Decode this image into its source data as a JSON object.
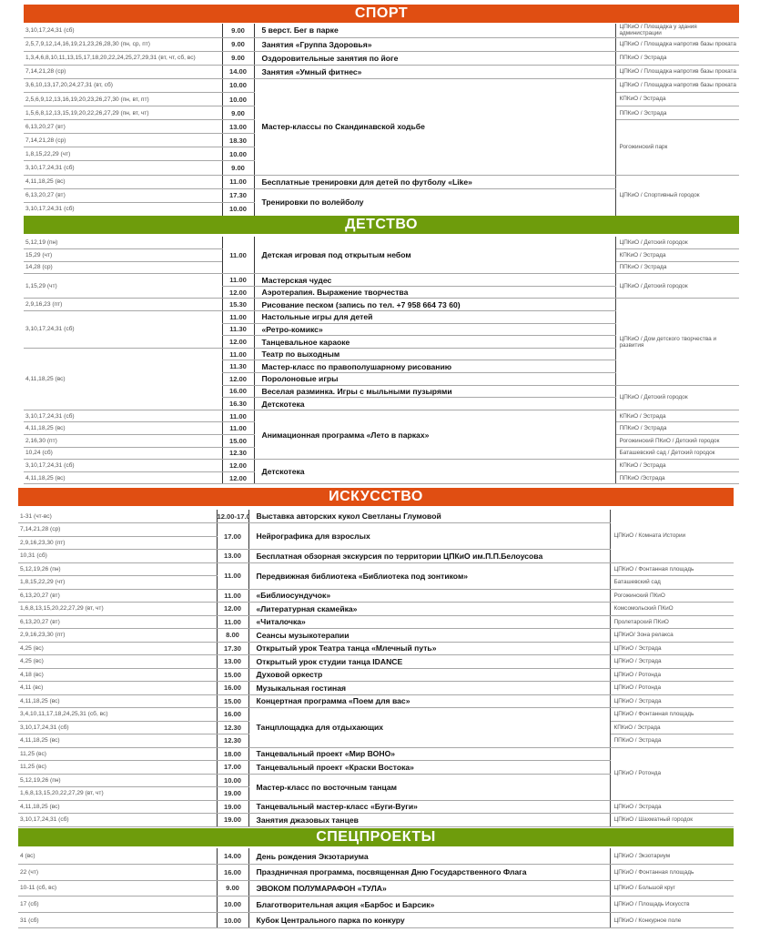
{
  "colors": {
    "orange": "#e04e12",
    "green": "#6e9c0c"
  },
  "sections": [
    {
      "title": "СПОРТ",
      "color": "#e04e12",
      "rows": [
        {
          "date": "3,10,17,24,31 (сб)",
          "time": "9.00",
          "event": "5 верст. Бег в парке",
          "venue": "ЦПКиО / Площадка у здания администрации"
        },
        {
          "date": "2,5,7,9,12,14,16,19,21,23,26,28,30 (пн, ср, пт)",
          "time": "9.00",
          "event": "Занятия «Группа Здоровья»",
          "venue": "ЦПКиО / Площадка напротив базы проката"
        },
        {
          "date": "1,3,4,6,8,10,11,13,15,17,18,20,22,24,25,27,29,31 (вт, чт, сб, вс)",
          "time": "9.00",
          "event": "Оздоровительные занятия по йоге",
          "venue": "ППКиО / Эстрада"
        },
        {
          "date": "7,14,21,28 (ср)",
          "time": "14.00",
          "event": "Занятия «Умный фитнес»",
          "venue": "ЦПКиО / Площадка напротив базы проката"
        },
        {
          "date": "3,6,10,13,17,20,24,27,31 (вт, сб)",
          "time": "10.00",
          "event": "Мастер-классы по Скандинавской ходьбе",
          "venue": "ЦПКиО / Площадка напротив базы проката"
        },
        {
          "date": "2,5,6,9,12,13,16,19,20,23,26,27,30  (пн, вт, пт)",
          "time": "10.00",
          "event": null,
          "venue": "КПКиО / Эстрада"
        },
        {
          "date": "1,5,6,8,12,13,15,19,20,22,26,27,29  (пн, вт, чт)",
          "time": "9.00",
          "event": null,
          "venue": "ППКиО / Эстрада"
        },
        {
          "date": "6,13,20,27 (вт)",
          "time": "13.00",
          "event": null,
          "venue": "Рогожинский парк"
        },
        {
          "date": "7,14,21,28 (ср)",
          "time": "18.30",
          "event": null,
          "venue": null
        },
        {
          "date": "1,8,15,22,29 (чт)",
          "time": "10.00",
          "event": null,
          "venue": null
        },
        {
          "date": "3,10,17,24,31 (сб)",
          "time": "9.00",
          "event": null,
          "venue": null
        },
        {
          "date": "4,11,18,25 (вс)",
          "time": "11.00",
          "event": "Бесплатные тренировки для детей по футболу «Like»",
          "venue": "ЦПКиО / Спортивный городок"
        },
        {
          "date": "6,13,20,27 (вт)",
          "time": "17.30",
          "event": "Тренировки по волейболу",
          "venue": null
        },
        {
          "date": "3,10,17,24,31 (сб)",
          "time": "10.00",
          "event": null,
          "venue": null
        }
      ]
    },
    {
      "title": "ДЕТСТВО",
      "color": "#6e9c0c",
      "rows": [
        {
          "date": "5,12,19 (пн)",
          "time": "11.00",
          "event": "Детская игровая под открытым небом",
          "venue": "ЦПКиО / Детский городок"
        },
        {
          "date": "15,29 (чт)",
          "time": null,
          "event": null,
          "venue": "КПКиО / Эстрада"
        },
        {
          "date": "14,28 (ср)",
          "time": null,
          "event": null,
          "venue": "ППКиО / Эстрада"
        },
        {
          "date": "1,15,29 (чт)",
          "time": "11.00",
          "event": "Мастерская чудес",
          "venue": "ЦПКиО / Детский городок"
        },
        {
          "date": null,
          "time": "12.00",
          "event": "Аэротерапия. Выражение творчества",
          "venue": null
        },
        {
          "date": "2,9,16,23 (пт)",
          "time": "15.30",
          "event": "Рисование песком (запись по тел. +7 958 664 73 60)",
          "venue": "ЦПКиО / Дом детского творчества и развития"
        },
        {
          "date": "3,10,17,24,31 (сб)",
          "time": "11.00",
          "event": "Настольные игры для детей",
          "venue": null
        },
        {
          "date": null,
          "time": "11.30",
          "event": "«Ретро-комикс»",
          "venue": null
        },
        {
          "date": null,
          "time": "12.00",
          "event": "Танцевальное караоке",
          "venue": null
        },
        {
          "date": "4,11,18,25 (вс)",
          "time": "11.00",
          "event": "Театр по выходным",
          "venue": null
        },
        {
          "date": null,
          "time": "11.30",
          "event": "Мастер-класс по правополушарному рисованию",
          "venue": null
        },
        {
          "date": null,
          "time": "12.00",
          "event": "Поролоновые игры",
          "venue": null
        },
        {
          "date": null,
          "time": "16.00",
          "event": "Веселая разминка. Игры с мыльными пузырями",
          "venue": "ЦПКиО / Детский городок"
        },
        {
          "date": null,
          "time": "16.30",
          "event": "Детскотека",
          "venue": null
        },
        {
          "date": "3,10,17,24,31 (сб)",
          "time": "11.00",
          "event": "Анимационная программа «Лето в парках»",
          "venue": "КПКиО / Эстрада"
        },
        {
          "date": "4,11,18,25 (вс)",
          "time": "11.00",
          "event": null,
          "venue": "ППКиО / Эстрада"
        },
        {
          "date": "2,16,30 (пт)",
          "time": "15.00",
          "event": null,
          "venue": "Рогожинский ПКиО / Детский городок"
        },
        {
          "date": "10,24 (сб)",
          "time": "12.30",
          "event": null,
          "venue": "Баташевский сад / Детский городок"
        },
        {
          "date": "3,10,17,24,31 (сб)",
          "time": "12.00",
          "event": "Детскотека",
          "venue": "КПКиО / Эстрада"
        },
        {
          "date": "4,11,18,25 (вс)",
          "time": "12.00",
          "event": null,
          "venue": "ППКиО /Эстрада"
        }
      ]
    },
    {
      "title": "ИСКУССТВО",
      "color": "#e04e12",
      "rows": [
        {
          "date": "1-31 (чт-вс)",
          "time": "12.00-17.00",
          "event": "Выставка авторских кукол Светланы Глумовой",
          "venue": "ЦПКиО / Комната Истории"
        },
        {
          "date": "7,14,21,28 (ср)",
          "time": "17.00",
          "event": "Нейрографика для взрослых",
          "venue": null
        },
        {
          "date": "2,9,16,23,30 (пт)",
          "time": null,
          "event": null,
          "venue": null
        },
        {
          "date": "10,31 (сб)",
          "time": "13.00",
          "event": "Бесплатная обзорная экскурсия по территории ЦПКиО им.П.П.Белоусова",
          "venue": null
        },
        {
          "date": "5,12,19,26 (пн)",
          "time": "11.00",
          "event": "Передвижная библиотека «Библиотека под зонтиком»",
          "venue": "ЦПКиО / Фонтанная площадь"
        },
        {
          "date": "1,8,15,22,29 (чт)",
          "time": null,
          "event": null,
          "venue": "Баташевский сад"
        },
        {
          "date": "6,13,20,27  (вт)",
          "time": "11.00",
          "event": "«Библиосундучок»",
          "venue": "Рогожинский ПКиО"
        },
        {
          "date": "1,6,8,13,15,20,22,27,29 (вт, чт)",
          "time": "12.00",
          "event": "«Литературная скамейка»",
          "venue": "Комсомольский ПКиО"
        },
        {
          "date": "6,13,20,27 (вт)",
          "time": "11.00",
          "event": "«Читалочка»",
          "venue": "Пролетарский ПКиО"
        },
        {
          "date": "2,9,16,23,30 (пт)",
          "time": "8.00",
          "event": "Сеансы музыкотерапии",
          "venue": "ЦПКиО/ Зона релакса"
        },
        {
          "date": "4,25 (вс)",
          "time": "17.30",
          "event": "Открытый урок Театра танца «Млечный путь»",
          "venue": "ЦПКиО / Эстрада"
        },
        {
          "date": "4,25 (вс)",
          "time": "13.00",
          "event": "Открытый урок студии танца IDANCE",
          "venue": "ЦПКиО / Эстрада"
        },
        {
          "date": "4,18 (вс)",
          "time": "15.00",
          "event": "Духовой оркестр",
          "venue": "ЦПКиО / Ротонда"
        },
        {
          "date": "4,11 (вс)",
          "time": "16.00",
          "event": "Музыкальная гостиная",
          "venue": "ЦПКиО / Ротонда"
        },
        {
          "date": "4,11,18,25 (вс)",
          "time": "15.00",
          "event": "Концертная программа «Поем для вас»",
          "venue": "ЦПКиО / Эстрада"
        },
        {
          "date": "3,4,10,11,17,18,24,25,31 (сб, вс)",
          "time": "16.00",
          "event": "Танцплощадка для отдыхающих",
          "venue": "ЦПКиО / Фонтанная площадь"
        },
        {
          "date": "3,10,17,24,31 (сб)",
          "time": "12.30",
          "event": null,
          "venue": "КПКиО / Эстрада"
        },
        {
          "date": "4,11,18,25  (вс)",
          "time": "12.30",
          "event": null,
          "venue": "ППКиО / Эстрада"
        },
        {
          "date": "11,25 (вс)",
          "time": "18.00",
          "event": "Танцевальный проект «Мир ВОНО»",
          "venue": "ЦПКиО / Ротонда"
        },
        {
          "date": "11,25 (вс)",
          "time": "17.00",
          "event": "Танцевальный проект «Краски  Востока»",
          "venue": null
        },
        {
          "date": "5,12,19,26 (пн)",
          "time": "10.00",
          "event": "Мастер-класс по восточным танцам",
          "venue": null
        },
        {
          "date": "1,6,8,13,15,20,22,27,29 (вт, чт)",
          "time": "19.00",
          "event": null,
          "venue": null
        },
        {
          "date": "4,11,18,25 (вс)",
          "time": "19.00",
          "event": "Танцевальный мастер-класс «Буги-Вуги»",
          "venue": "ЦПКиО / Эстрада"
        },
        {
          "date": "3,10,17,24,31 (сб)",
          "time": "19.00",
          "event": "Занятия джазовых танцев",
          "venue": "ЦПКиО / Шахматный городок"
        }
      ]
    },
    {
      "title": "СПЕЦПРОЕКТЫ",
      "color": "#6e9c0c",
      "rows": [
        {
          "date": "4 (вс)",
          "time": "14.00",
          "event": "День рождения Экзотариума",
          "venue": "ЦПКиО / Экзотариум"
        },
        {
          "date": "22 (чт)",
          "time": "16.00",
          "event": "Праздничная программа, посвященная Дню Государственного Флага",
          "venue": "ЦПКиО / Фонтанная площадь"
        },
        {
          "date": "10-11 (сб, вс)",
          "time": "9.00",
          "event": "ЭВОКОМ ПОЛУМАРАФОН «ТУЛА»",
          "venue": "ЦПКиО / Большой круг"
        },
        {
          "date": "17 (сб)",
          "time": "10.00",
          "event": "Благотворительная акция «Барбос и Барсик»",
          "venue": "ЦПКиО / Площадь Искусств"
        },
        {
          "date": "31 (сб)",
          "time": "10.00",
          "event": "Кубок Центрального парка по конкуру",
          "venue": "ЦПКиО / Конкурное поле"
        }
      ]
    }
  ]
}
